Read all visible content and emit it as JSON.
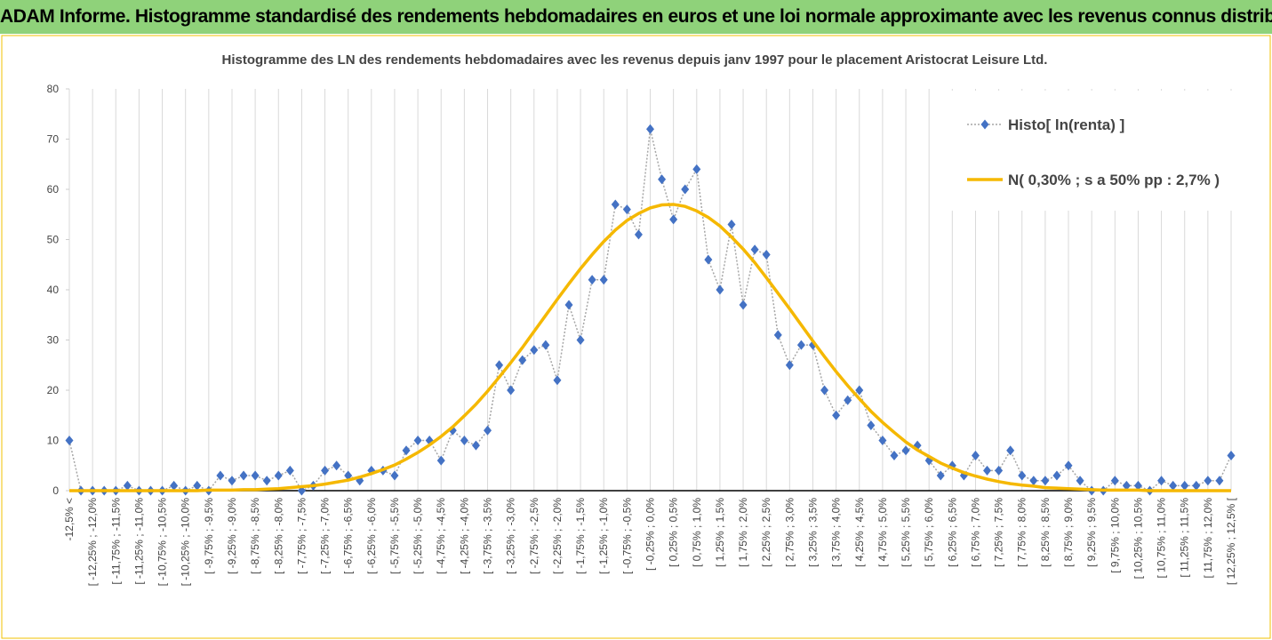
{
  "header": {
    "title": "ADAM Informe. Histogramme standardisé des rendements hebdomadaires en euros et une loi normale approximante avec les revenus connus distribués"
  },
  "chart_data": {
    "type": "line",
    "title": "Histogramme  des LN des rendements hebdomadaires avec les revenus depuis janv 1997 pour le placement Aristocrat Leisure Ltd.",
    "categories": [
      "-12,5% <",
      null,
      "[ -12,25% ; -12,0%",
      null,
      "[ -11,75% ; -11,5%",
      null,
      "[ -11,25% ; -11,0%",
      null,
      "[ -10,75% ; -10,5%",
      null,
      "[ -10,25% ; -10,0%",
      null,
      "[ -9,75% ; -9,5%",
      null,
      "[ -9,25% ; -9,0%",
      null,
      "[ -8,75% ; -8,5%",
      null,
      "[ -8,25% ; -8,0%",
      null,
      "[ -7,75% ; -7,5%",
      null,
      "[ -7,25% ; -7,0%",
      null,
      "[ -6,75% ; -6,5%",
      null,
      "[ -6,25% ; -6,0%",
      null,
      "[ -5,75% ; -5,5%",
      null,
      "[ -5,25% ; -5,0%",
      null,
      "[ -4,75% ; -4,5%",
      null,
      "[ -4,25% ; -4,0%",
      null,
      "[ -3,75% ; -3,5%",
      null,
      "[ -3,25% ; -3,0%",
      null,
      "[ -2,75% ; -2,5%",
      null,
      "[ -2,25% ; -2,0%",
      null,
      "[ -1,75% ; -1,5%",
      null,
      "[ -1,25% ; -1,0%",
      null,
      "[ -0,75% ; -0,5%",
      null,
      "[ -0,25% ; 0,0%",
      null,
      "[ 0,25% ; 0,5%",
      null,
      "[ 0,75% ; 1,0%",
      null,
      "[ 1,25% ; 1,5%",
      null,
      "[ 1,75% ; 2,0%",
      null,
      "[ 2,25% ; 2,5%",
      null,
      "[ 2,75% ; 3,0%",
      null,
      "[ 3,25% ; 3,5%",
      null,
      "[ 3,75% ; 4,0%",
      null,
      "[ 4,25% ; 4,5%",
      null,
      "[ 4,75% ; 5,0%",
      null,
      "[ 5,25% ; 5,5%",
      null,
      "[ 5,75% ; 6,0%",
      null,
      "[ 6,25% ; 6,5%",
      null,
      "[ 6,75% ; 7,0%",
      null,
      "[ 7,25% ; 7,5%",
      null,
      "[ 7,75% ; 8,0%",
      null,
      "[ 8,25% ; 8,5%",
      null,
      "[ 8,75% ; 9,0%",
      null,
      "[ 9,25% ; 9,5%",
      null,
      "[ 9,75% ; 10,0%",
      null,
      "[ 10,25% ; 10,5%",
      null,
      "[ 10,75% ; 11,0%",
      null,
      "[ 11,25% ; 11,5%",
      null,
      "[ 11,75% ; 12,0%",
      null,
      "[ 12,25% ; 12,5% ["
    ],
    "series": [
      {
        "name": "Histo[ ln(renta) ]",
        "color": "#4472c4",
        "style": "dotted-markers",
        "values": [
          10,
          0,
          0,
          0,
          0,
          1,
          0,
          0,
          0,
          1,
          0,
          1,
          0,
          3,
          2,
          3,
          3,
          2,
          3,
          4,
          0,
          1,
          4,
          5,
          3,
          2,
          4,
          4,
          3,
          8,
          10,
          10,
          6,
          12,
          10,
          9,
          12,
          25,
          20,
          26,
          28,
          29,
          22,
          37,
          30,
          42,
          42,
          57,
          56,
          51,
          72,
          62,
          54,
          60,
          64,
          46,
          40,
          53,
          37,
          48,
          47,
          31,
          25,
          29,
          29,
          20,
          15,
          18,
          20,
          13,
          10,
          7,
          8,
          9,
          6,
          3,
          5,
          3,
          7,
          4,
          4,
          8,
          3,
          2,
          2,
          3,
          5,
          2,
          0,
          0,
          2,
          1,
          1,
          0,
          2,
          1,
          1,
          1,
          2,
          2,
          7
        ]
      },
      {
        "name": "N( 0,30% ; s a 50% pp : 2,7% )",
        "color": "#f5b800",
        "style": "line",
        "values": [
          0,
          0,
          0,
          0,
          0,
          0,
          0,
          0,
          0,
          0,
          0,
          0,
          0.1,
          0.1,
          0.1,
          0.2,
          0.2,
          0.3,
          0.4,
          0.6,
          0.8,
          1.0,
          1.3,
          1.7,
          2.1,
          2.7,
          3.4,
          4.2,
          5.1,
          6.3,
          7.6,
          9.1,
          10.8,
          12.7,
          14.9,
          17.2,
          19.8,
          22.6,
          25.5,
          28.5,
          31.7,
          34.9,
          38.1,
          41.2,
          44.2,
          47.0,
          49.6,
          51.9,
          53.8,
          55.2,
          56.3,
          56.9,
          57.0,
          56.6,
          55.7,
          54.4,
          52.7,
          50.5,
          48.1,
          45.4,
          42.4,
          39.3,
          36.2,
          33.0,
          29.8,
          26.7,
          23.7,
          20.9,
          18.3,
          15.8,
          13.6,
          11.6,
          9.7,
          8.1,
          6.8,
          5.5,
          4.5,
          3.6,
          2.9,
          2.3,
          1.8,
          1.4,
          1.1,
          0.9,
          0.6,
          0.5,
          0.4,
          0.3,
          0.2,
          0.1,
          0.1,
          0.1,
          0.1,
          0,
          0,
          0,
          0,
          0,
          0,
          0,
          0
        ]
      }
    ],
    "ylim": [
      0,
      80
    ],
    "yticks": [
      0,
      10,
      20,
      30,
      40,
      50,
      60,
      70,
      80
    ],
    "legend": "top-right"
  }
}
